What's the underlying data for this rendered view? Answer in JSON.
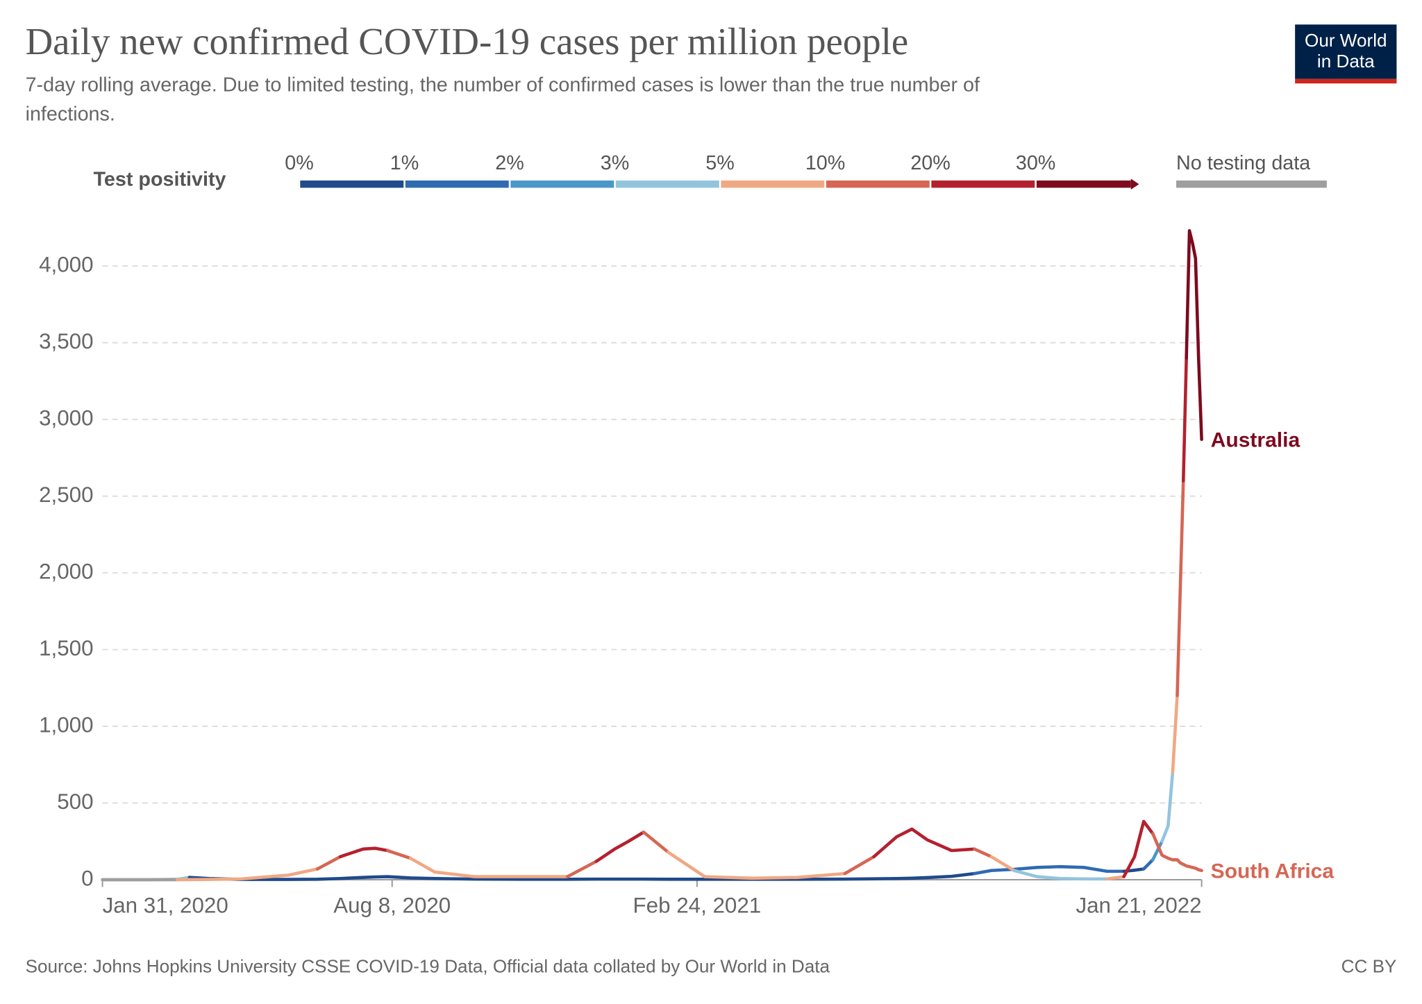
{
  "chart_data": {
    "type": "line",
    "title": "Daily new confirmed COVID-19 cases per million people",
    "subtitle_lines": [
      "7-day rolling average. Due to limited testing, the number of confirmed cases is lower than the true number of",
      "infections."
    ],
    "logo_lines": [
      "Our World",
      "in Data"
    ],
    "source": "Source: Johns Hopkins University CSSE COVID-19 Data, Official data collated by Our World in Data",
    "license": "CC BY",
    "legend": {
      "title": "Test positivity",
      "labels": [
        "0%",
        "1%",
        "2%",
        "3%",
        "5%",
        "10%",
        "20%",
        "30%"
      ],
      "colors": [
        "#1f4a8c",
        "#2f6bb1",
        "#4a97c9",
        "#93c4de",
        "#f0a883",
        "#d66654",
        "#b4212e",
        "#7d0a1f"
      ],
      "no_data_label": "No testing data",
      "no_data_color": "#9e9e9e"
    },
    "x": [
      "2020-01-31",
      "2020-03-01",
      "2020-03-20",
      "2020-03-28",
      "2020-04-10",
      "2020-05-01",
      "2020-06-01",
      "2020-06-20",
      "2020-07-05",
      "2020-07-20",
      "2020-07-28",
      "2020-08-05",
      "2020-08-20",
      "2020-09-05",
      "2020-10-01",
      "2020-11-01",
      "2020-12-01",
      "2020-12-20",
      "2021-01-01",
      "2021-01-10",
      "2021-01-20",
      "2021-02-05",
      "2021-03-01",
      "2021-04-01",
      "2021-05-01",
      "2021-06-01",
      "2021-06-20",
      "2021-07-05",
      "2021-07-15",
      "2021-07-25",
      "2021-08-10",
      "2021-08-25",
      "2021-09-05",
      "2021-09-20",
      "2021-10-05",
      "2021-10-20",
      "2021-11-05",
      "2021-11-20",
      "2021-12-01",
      "2021-12-08",
      "2021-12-14",
      "2021-12-20",
      "2021-12-26",
      "2021-12-30",
      "2022-01-02",
      "2022-01-05",
      "2022-01-07",
      "2022-01-09",
      "2022-01-11",
      "2022-01-13",
      "2022-01-15",
      "2022-01-17",
      "2022-01-19",
      "2022-01-21"
    ],
    "xlim": [
      "2020-01-31",
      "2022-01-21"
    ],
    "xticks": [
      {
        "value": "2020-01-31",
        "label": "Jan 31, 2020"
      },
      {
        "value": "2020-08-08",
        "label": "Aug 8, 2020"
      },
      {
        "value": "2021-02-24",
        "label": "Feb 24, 2021"
      },
      {
        "value": "2022-01-21",
        "label": "Jan 21, 2022"
      }
    ],
    "ylim": [
      0,
      4250
    ],
    "yticks": [
      0,
      500,
      {
        "value": 1000,
        "label": "1,000"
      },
      {
        "value": 1500,
        "label": "1,500"
      },
      {
        "value": 2000,
        "label": "2,000"
      },
      {
        "value": 2500,
        "label": "2,500"
      },
      {
        "value": 3000,
        "label": "3,000"
      },
      {
        "value": 3500,
        "label": "3,500"
      },
      {
        "value": 4000,
        "label": "4,000"
      }
    ],
    "grid": true,
    "series": [
      {
        "name": "Australia",
        "values": [
          0,
          0,
          2,
          15,
          8,
          2,
          2,
          3,
          8,
          15,
          18,
          20,
          12,
          8,
          4,
          3,
          3,
          4,
          4,
          4,
          4,
          3,
          3,
          3,
          3,
          4,
          6,
          8,
          10,
          14,
          22,
          40,
          60,
          68,
          80,
          85,
          80,
          55,
          55,
          62,
          70,
          130,
          250,
          350,
          700,
          1200,
          1900,
          2600,
          3400,
          4230,
          4150,
          4050,
          3400,
          2870
        ],
        "colors": [
          "#9e9e9e",
          "#9e9e9e",
          "#9e9e9e",
          "#93c4de",
          "#1f4a8c",
          "#1f4a8c",
          "#1f4a8c",
          "#1f4a8c",
          "#1f4a8c",
          "#1f4a8c",
          "#1f4a8c",
          "#1f4a8c",
          "#1f4a8c",
          "#1f4a8c",
          "#1f4a8c",
          "#1f4a8c",
          "#1f4a8c",
          "#1f4a8c",
          "#1f4a8c",
          "#1f4a8c",
          "#1f4a8c",
          "#1f4a8c",
          "#1f4a8c",
          "#1f4a8c",
          "#1f4a8c",
          "#1f4a8c",
          "#1f4a8c",
          "#1f4a8c",
          "#1f4a8c",
          "#1f4a8c",
          "#1f4a8c",
          "#1f4a8c",
          "#2f6bb1",
          "#2f6bb1",
          "#2f6bb1",
          "#2f6bb1",
          "#2f6bb1",
          "#2f6bb1",
          "#2f6bb1",
          "#1f4a8c",
          "#1f4a8c",
          "#2f6bb1",
          "#4a97c9",
          "#93c4de",
          "#93c4de",
          "#f0a883",
          "#d66654",
          "#d66654",
          "#b4212e",
          "#7d0a1f",
          "#7d0a1f",
          "#7d0a1f",
          "#7d0a1f",
          "#7d0a1f"
        ]
      },
      {
        "name": "South Africa",
        "values": [
          0,
          0,
          0,
          1,
          2,
          5,
          30,
          70,
          150,
          200,
          205,
          190,
          140,
          50,
          20,
          20,
          20,
          120,
          200,
          250,
          310,
          180,
          20,
          10,
          15,
          40,
          150,
          280,
          330,
          260,
          190,
          200,
          150,
          60,
          20,
          8,
          5,
          5,
          20,
          150,
          380,
          300,
          160,
          140,
          130,
          130,
          110,
          100,
          90,
          85,
          80,
          75,
          65,
          60
        ],
        "colors": [
          "#9e9e9e",
          "#9e9e9e",
          "#9e9e9e",
          "#f0a883",
          "#f0a883",
          "#f0a883",
          "#f0a883",
          "#f0a883",
          "#d66654",
          "#b4212e",
          "#b4212e",
          "#b4212e",
          "#d66654",
          "#f0a883",
          "#f0a883",
          "#f0a883",
          "#f0a883",
          "#d66654",
          "#b4212e",
          "#b4212e",
          "#b4212e",
          "#d66654",
          "#f0a883",
          "#f0a883",
          "#f0a883",
          "#f0a883",
          "#d66654",
          "#b4212e",
          "#b4212e",
          "#b4212e",
          "#b4212e",
          "#b4212e",
          "#d66654",
          "#f0a883",
          "#93c4de",
          "#93c4de",
          "#93c4de",
          "#93c4de",
          "#f0a883",
          "#b4212e",
          "#b4212e",
          "#b4212e",
          "#d66654",
          "#d66654",
          "#d66654",
          "#d66654",
          "#d66654",
          "#d66654",
          "#d66654",
          "#d66654",
          "#d66654",
          "#d66654",
          "#d66654",
          "#d66654"
        ]
      }
    ]
  }
}
